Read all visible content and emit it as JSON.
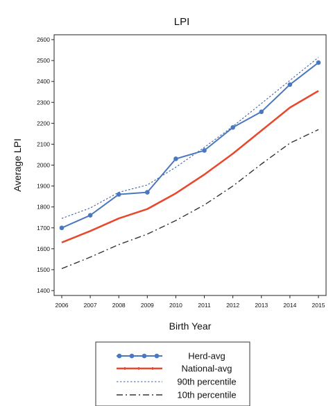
{
  "chart_data": {
    "type": "line",
    "title": "LPI",
    "xlabel": "Birth Year",
    "ylabel": "Average LPI",
    "x": [
      2006,
      2007,
      2008,
      2009,
      2010,
      2011,
      2012,
      2013,
      2014,
      2015
    ],
    "ylim": [
      1400,
      2600
    ],
    "yticks": [
      1400,
      1500,
      1600,
      1700,
      1800,
      1900,
      2000,
      2100,
      2200,
      2300,
      2400,
      2500,
      2600
    ],
    "xtick_labels": [
      "2006",
      "2007",
      "2008",
      "2009",
      "2010",
      "2011",
      "2012",
      "2013",
      "2014",
      "2015"
    ],
    "grid": false,
    "legend_position": "bottom",
    "series": [
      {
        "name": "Herd-avg",
        "color": "#4a78c0",
        "style": "solid-markers",
        "values": [
          1700,
          1760,
          1860,
          1870,
          2030,
          2070,
          2180,
          2255,
          2385,
          2490
        ]
      },
      {
        "name": "National-avg",
        "color": "#e8482e",
        "style": "solid",
        "values": [
          1630,
          1685,
          1745,
          1790,
          1865,
          1955,
          2055,
          2165,
          2275,
          2355
        ]
      },
      {
        "name": "90th percentile",
        "color": "#3a5fa8",
        "style": "dotted",
        "values": [
          1745,
          1795,
          1870,
          1905,
          1990,
          2085,
          2185,
          2295,
          2405,
          2515
        ]
      },
      {
        "name": "10th percentile",
        "color": "#333333",
        "style": "dashdot",
        "values": [
          1505,
          1560,
          1620,
          1670,
          1735,
          1810,
          1900,
          2005,
          2105,
          2170
        ]
      }
    ]
  }
}
